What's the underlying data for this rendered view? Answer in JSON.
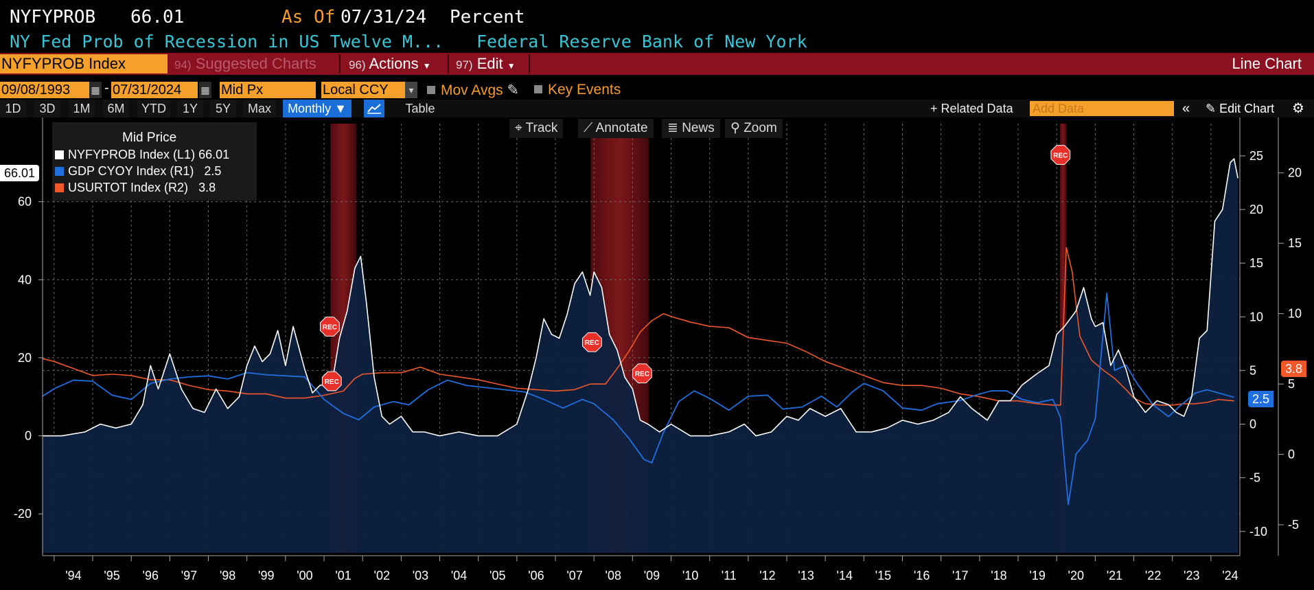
{
  "header": {
    "ticker": "NYFYPROB",
    "last_value": "66.01",
    "as_of_label": "As Of",
    "as_of_date": "07/31/24",
    "unit": "Percent",
    "description": "NY Fed Prob of Recession in US Twelve M...",
    "source": "Federal Reserve Bank of New York"
  },
  "command_bar": {
    "security": "NYFYPROB Index",
    "suggested": {
      "num": "94)",
      "label": "Suggested Charts"
    },
    "actions": {
      "num": "96)",
      "label": "Actions"
    },
    "edit": {
      "num": "97)",
      "label": "Edit"
    },
    "chart_type": "Line Chart"
  },
  "settings": {
    "start_date": "09/08/1993",
    "end_date": "07/31/2024",
    "dash": "-",
    "price_field": "Mid Px",
    "currency": "Local CCY",
    "mov_avgs": "Mov Avgs",
    "key_events": "Key Events"
  },
  "range_buttons": [
    "1D",
    "3D",
    "1M",
    "6M",
    "YTD",
    "1Y",
    "5Y",
    "Max"
  ],
  "period": "Monthly",
  "table_label": "Table",
  "related_data": "+ Related Data",
  "add_data_placeholder": "Add Data",
  "edit_chart": "Edit Chart",
  "tools": {
    "track": "Track",
    "annotate": "Annotate",
    "news": "News",
    "zoom": "Zoom"
  },
  "legend": {
    "title": "Mid Price",
    "items": [
      {
        "label": "NYFYPROB Index  (L1)",
        "value": "66.01",
        "color": "#ffffff"
      },
      {
        "label": "GDP CYOY Index  (R1)",
        "value": "2.5",
        "color": "#1f6fe0"
      },
      {
        "label": "USURTOT Index  (R2)",
        "value": "3.8",
        "color": "#f0582a"
      }
    ]
  },
  "last_tags": {
    "left": "66.01",
    "gdp": "2.5",
    "unemp": "3.8"
  },
  "rec_label": "REC",
  "axes": {
    "left_ticks": [
      "60",
      "40",
      "20",
      "0",
      "-20"
    ],
    "r1_ticks": [
      "25",
      "20",
      "15",
      "10",
      "5",
      "0",
      "-5",
      "-10"
    ],
    "r2_ticks": [
      "20",
      "15",
      "10",
      "5",
      "0",
      "-5"
    ],
    "x_ticks": [
      "'94",
      "'95",
      "'96",
      "'97",
      "'98",
      "'99",
      "'00",
      "'01",
      "'02",
      "'03",
      "'04",
      "'05",
      "'06",
      "'07",
      "'08",
      "'09",
      "'10",
      "'11",
      "'12",
      "'13",
      "'14",
      "'15",
      "'16",
      "'17",
      "'18",
      "'19",
      "'20",
      "'21",
      "'22",
      "'23",
      "'24"
    ]
  },
  "chart_data": {
    "type": "line",
    "x_range": [
      "1993-09",
      "2024-07"
    ],
    "recessions": [
      [
        "2001-03",
        "2001-11"
      ],
      [
        "2007-12",
        "2009-06"
      ],
      [
        "2020-02",
        "2020-04"
      ]
    ],
    "series": [
      {
        "name": "NYFYPROB Index (L1)",
        "axis": "left",
        "ylim": [
          -30,
          80
        ],
        "points": [
          [
            1993.7,
            0
          ],
          [
            1994.2,
            0
          ],
          [
            1994.8,
            1
          ],
          [
            1995.2,
            3
          ],
          [
            1995.6,
            2
          ],
          [
            1996.0,
            3
          ],
          [
            1996.3,
            8
          ],
          [
            1996.5,
            18
          ],
          [
            1996.7,
            12
          ],
          [
            1997.0,
            21
          ],
          [
            1997.3,
            12
          ],
          [
            1997.6,
            7
          ],
          [
            1997.9,
            6
          ],
          [
            1998.2,
            12
          ],
          [
            1998.5,
            7
          ],
          [
            1998.8,
            10
          ],
          [
            1999.0,
            18
          ],
          [
            1999.2,
            23
          ],
          [
            1999.4,
            19
          ],
          [
            1999.6,
            21
          ],
          [
            1999.8,
            27
          ],
          [
            2000.0,
            18
          ],
          [
            2000.2,
            28
          ],
          [
            2000.5,
            17
          ],
          [
            2000.7,
            11
          ],
          [
            2000.9,
            13
          ],
          [
            2001.2,
            13
          ],
          [
            2001.4,
            25
          ],
          [
            2001.6,
            32
          ],
          [
            2001.8,
            43
          ],
          [
            2001.95,
            46
          ],
          [
            2002.1,
            34
          ],
          [
            2002.3,
            15
          ],
          [
            2002.5,
            5
          ],
          [
            2002.7,
            3
          ],
          [
            2003.0,
            5
          ],
          [
            2003.3,
            1
          ],
          [
            2003.6,
            1
          ],
          [
            2004.0,
            0
          ],
          [
            2004.5,
            1
          ],
          [
            2005.0,
            0
          ],
          [
            2005.5,
            0
          ],
          [
            2006.0,
            3
          ],
          [
            2006.3,
            12
          ],
          [
            2006.5,
            20
          ],
          [
            2006.7,
            30
          ],
          [
            2006.9,
            26
          ],
          [
            2007.1,
            25
          ],
          [
            2007.3,
            31
          ],
          [
            2007.5,
            39
          ],
          [
            2007.7,
            42
          ],
          [
            2007.9,
            36
          ],
          [
            2008.0,
            42
          ],
          [
            2008.2,
            38
          ],
          [
            2008.4,
            26
          ],
          [
            2008.6,
            22
          ],
          [
            2008.8,
            15
          ],
          [
            2009.0,
            12
          ],
          [
            2009.2,
            4
          ],
          [
            2009.4,
            3
          ],
          [
            2009.7,
            1
          ],
          [
            2010.0,
            3
          ],
          [
            2010.5,
            0
          ],
          [
            2011.0,
            0
          ],
          [
            2011.5,
            1
          ],
          [
            2011.9,
            3
          ],
          [
            2012.2,
            0
          ],
          [
            2012.6,
            1
          ],
          [
            2013.0,
            5
          ],
          [
            2013.3,
            4
          ],
          [
            2013.6,
            7
          ],
          [
            2014.0,
            5
          ],
          [
            2014.4,
            7
          ],
          [
            2014.8,
            1
          ],
          [
            2015.2,
            1
          ],
          [
            2015.6,
            2
          ],
          [
            2016.0,
            4
          ],
          [
            2016.4,
            3
          ],
          [
            2016.8,
            4
          ],
          [
            2017.2,
            6
          ],
          [
            2017.5,
            10
          ],
          [
            2017.8,
            7
          ],
          [
            2018.2,
            4
          ],
          [
            2018.5,
            9
          ],
          [
            2018.8,
            9
          ],
          [
            2019.1,
            13
          ],
          [
            2019.5,
            16
          ],
          [
            2019.8,
            18
          ],
          [
            2020.0,
            26
          ],
          [
            2020.2,
            28
          ],
          [
            2020.5,
            32
          ],
          [
            2020.7,
            38
          ],
          [
            2020.9,
            30
          ],
          [
            2021.0,
            28
          ],
          [
            2021.2,
            29
          ],
          [
            2021.4,
            18
          ],
          [
            2021.6,
            22
          ],
          [
            2021.8,
            17
          ],
          [
            2022.0,
            10
          ],
          [
            2022.3,
            6
          ],
          [
            2022.6,
            9
          ],
          [
            2022.9,
            8
          ],
          [
            2023.1,
            6
          ],
          [
            2023.3,
            5
          ],
          [
            2023.5,
            10
          ],
          [
            2023.7,
            25
          ],
          [
            2023.9,
            27
          ],
          [
            2024.1,
            55
          ],
          [
            2024.3,
            58
          ],
          [
            2024.5,
            70
          ],
          [
            2024.6,
            71
          ],
          [
            2024.7,
            66.01
          ]
        ]
      },
      {
        "name": "GDP CYOY Index (R1)",
        "axis": "right1",
        "ylim": [
          -12,
          28
        ],
        "points": [
          [
            1993.7,
            2.6
          ],
          [
            1994.0,
            3.3
          ],
          [
            1994.5,
            4.1
          ],
          [
            1995.0,
            4.0
          ],
          [
            1995.5,
            2.7
          ],
          [
            1996.0,
            2.3
          ],
          [
            1996.5,
            3.8
          ],
          [
            1997.0,
            4.2
          ],
          [
            1997.5,
            4.4
          ],
          [
            1998.0,
            4.5
          ],
          [
            1998.5,
            4.2
          ],
          [
            1999.0,
            4.8
          ],
          [
            1999.5,
            4.6
          ],
          [
            2000.0,
            4.5
          ],
          [
            2000.5,
            4.4
          ],
          [
            2001.0,
            2.3
          ],
          [
            2001.5,
            1.0
          ],
          [
            2001.9,
            0.4
          ],
          [
            2002.3,
            1.6
          ],
          [
            2002.8,
            2.1
          ],
          [
            2003.2,
            1.8
          ],
          [
            2003.7,
            3.2
          ],
          [
            2004.2,
            4.1
          ],
          [
            2004.7,
            3.6
          ],
          [
            2005.2,
            3.4
          ],
          [
            2005.7,
            3.2
          ],
          [
            2006.2,
            3.0
          ],
          [
            2006.7,
            2.3
          ],
          [
            2007.2,
            1.5
          ],
          [
            2007.7,
            2.3
          ],
          [
            2008.0,
            1.9
          ],
          [
            2008.5,
            0.4
          ],
          [
            2008.9,
            -1.3
          ],
          [
            2009.3,
            -3.3
          ],
          [
            2009.5,
            -3.6
          ],
          [
            2009.8,
            -0.8
          ],
          [
            2010.2,
            2.1
          ],
          [
            2010.6,
            3.1
          ],
          [
            2011.0,
            2.4
          ],
          [
            2011.5,
            1.3
          ],
          [
            2012.0,
            2.6
          ],
          [
            2012.5,
            2.7
          ],
          [
            2012.9,
            1.4
          ],
          [
            2013.4,
            1.6
          ],
          [
            2013.9,
            2.6
          ],
          [
            2014.3,
            1.6
          ],
          [
            2014.7,
            3.0
          ],
          [
            2015.0,
            3.8
          ],
          [
            2015.5,
            3.1
          ],
          [
            2016.0,
            1.5
          ],
          [
            2016.5,
            1.3
          ],
          [
            2016.9,
            1.9
          ],
          [
            2017.5,
            2.2
          ],
          [
            2017.9,
            2.7
          ],
          [
            2018.3,
            3.1
          ],
          [
            2018.7,
            3.1
          ],
          [
            2019.1,
            2.3
          ],
          [
            2019.5,
            2.0
          ],
          [
            2019.9,
            2.3
          ],
          [
            2020.1,
            0.6
          ],
          [
            2020.3,
            -7.5
          ],
          [
            2020.5,
            -2.8
          ],
          [
            2020.8,
            -1.5
          ],
          [
            2021.0,
            0.5
          ],
          [
            2021.3,
            12.2
          ],
          [
            2021.5,
            5.0
          ],
          [
            2021.8,
            5.5
          ],
          [
            2022.1,
            3.7
          ],
          [
            2022.5,
            1.8
          ],
          [
            2022.9,
            0.7
          ],
          [
            2023.2,
            1.7
          ],
          [
            2023.6,
            2.9
          ],
          [
            2023.9,
            3.2
          ],
          [
            2024.2,
            2.9
          ],
          [
            2024.6,
            2.5
          ]
        ]
      },
      {
        "name": "USURTOT Index (R2)",
        "axis": "right2",
        "ylim": [
          -7,
          23.5
        ],
        "points": [
          [
            1993.7,
            6.8
          ],
          [
            1994.0,
            6.6
          ],
          [
            1994.5,
            6.1
          ],
          [
            1995.0,
            5.6
          ],
          [
            1995.5,
            5.7
          ],
          [
            1996.0,
            5.6
          ],
          [
            1996.5,
            5.3
          ],
          [
            1997.0,
            5.3
          ],
          [
            1997.5,
            4.9
          ],
          [
            1998.0,
            4.6
          ],
          [
            1998.5,
            4.5
          ],
          [
            1999.0,
            4.3
          ],
          [
            1999.5,
            4.3
          ],
          [
            2000.0,
            4.0
          ],
          [
            2000.5,
            4.0
          ],
          [
            2001.0,
            4.2
          ],
          [
            2001.5,
            4.5
          ],
          [
            2001.8,
            5.4
          ],
          [
            2002.0,
            5.7
          ],
          [
            2002.5,
            5.8
          ],
          [
            2003.0,
            5.8
          ],
          [
            2003.5,
            6.2
          ],
          [
            2004.0,
            5.7
          ],
          [
            2004.5,
            5.5
          ],
          [
            2005.0,
            5.3
          ],
          [
            2005.5,
            5.0
          ],
          [
            2006.0,
            4.7
          ],
          [
            2006.5,
            4.6
          ],
          [
            2007.0,
            4.5
          ],
          [
            2007.5,
            4.6
          ],
          [
            2007.9,
            5.0
          ],
          [
            2008.3,
            5.0
          ],
          [
            2008.6,
            6.1
          ],
          [
            2008.9,
            7.3
          ],
          [
            2009.2,
            8.7
          ],
          [
            2009.5,
            9.5
          ],
          [
            2009.8,
            10.0
          ],
          [
            2010.0,
            9.8
          ],
          [
            2010.5,
            9.4
          ],
          [
            2011.0,
            9.1
          ],
          [
            2011.5,
            9.0
          ],
          [
            2012.0,
            8.3
          ],
          [
            2012.5,
            8.1
          ],
          [
            2013.0,
            7.9
          ],
          [
            2013.5,
            7.3
          ],
          [
            2014.0,
            6.6
          ],
          [
            2014.5,
            6.1
          ],
          [
            2015.0,
            5.6
          ],
          [
            2015.5,
            5.1
          ],
          [
            2016.0,
            4.9
          ],
          [
            2016.5,
            4.9
          ],
          [
            2017.0,
            4.7
          ],
          [
            2017.5,
            4.3
          ],
          [
            2018.0,
            4.1
          ],
          [
            2018.5,
            3.8
          ],
          [
            2019.0,
            3.8
          ],
          [
            2019.5,
            3.6
          ],
          [
            2019.9,
            3.5
          ],
          [
            2020.1,
            3.5
          ],
          [
            2020.25,
            14.7
          ],
          [
            2020.4,
            13.0
          ],
          [
            2020.6,
            8.4
          ],
          [
            2020.9,
            6.7
          ],
          [
            2021.2,
            6.0
          ],
          [
            2021.5,
            5.4
          ],
          [
            2021.8,
            4.6
          ],
          [
            2022.0,
            4.0
          ],
          [
            2022.3,
            3.6
          ],
          [
            2022.7,
            3.5
          ],
          [
            2023.0,
            3.5
          ],
          [
            2023.3,
            3.6
          ],
          [
            2023.6,
            3.6
          ],
          [
            2023.9,
            3.7
          ],
          [
            2024.2,
            3.9
          ],
          [
            2024.6,
            3.8
          ]
        ]
      }
    ],
    "rec_markers": [
      [
        2001.15,
        28
      ],
      [
        2001.2,
        14
      ],
      [
        2007.95,
        24
      ],
      [
        2009.25,
        16
      ],
      [
        2020.1,
        72
      ]
    ]
  }
}
